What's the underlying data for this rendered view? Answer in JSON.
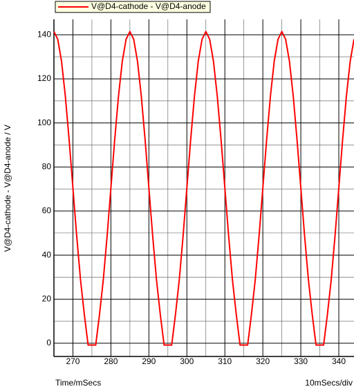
{
  "chart_data": {
    "type": "line",
    "legend_position": "top",
    "xlabel": "Time/mSecs",
    "xscale_label": "10mSecs/div",
    "ylabel": "V@D4-cathode - V@D4-anode / V",
    "x": [
      265,
      266,
      267,
      268,
      269,
      270,
      271,
      272,
      273,
      274,
      275,
      276,
      277,
      278,
      279,
      280,
      281,
      282,
      283,
      284,
      285,
      286,
      287,
      288,
      289,
      290,
      291,
      292,
      293,
      294,
      295,
      296,
      297,
      298,
      299,
      300,
      301,
      302,
      303,
      304,
      305,
      306,
      307,
      308,
      309,
      310,
      311,
      312,
      313,
      314,
      315,
      316,
      317,
      318,
      319,
      320,
      321,
      322,
      323,
      324,
      325,
      326,
      327,
      328,
      329,
      330,
      331,
      332,
      333,
      334,
      335,
      336,
      337,
      338,
      339,
      340,
      341,
      342,
      343,
      344
    ],
    "series": [
      {
        "name": "V@D4-cathode - V@D4-anode",
        "color": "#ff0000",
        "values": [
          141.5,
          138.0,
          128.0,
          112.2,
          92.4,
          70.5,
          48.6,
          28.8,
          13.1,
          -0.8,
          -0.8,
          -0.8,
          13.1,
          28.8,
          48.6,
          70.5,
          92.4,
          112.2,
          128.0,
          138.0,
          141.5,
          138.0,
          128.0,
          112.2,
          92.4,
          70.5,
          48.6,
          28.8,
          13.1,
          -0.8,
          -0.8,
          -0.8,
          13.1,
          28.8,
          48.6,
          70.5,
          92.4,
          112.2,
          128.0,
          138.0,
          141.5,
          138.0,
          128.0,
          112.2,
          92.4,
          70.5,
          48.6,
          28.8,
          13.1,
          -0.8,
          -0.8,
          -0.8,
          13.1,
          28.8,
          48.6,
          70.5,
          92.4,
          112.2,
          128.0,
          138.0,
          141.5,
          138.0,
          128.0,
          112.2,
          92.4,
          70.5,
          48.6,
          28.8,
          13.1,
          -0.8,
          -0.8,
          -0.8,
          13.1,
          28.8,
          48.6,
          70.5,
          92.4,
          112.2,
          128.0,
          138.0
        ]
      }
    ],
    "xlim": [
      265,
      344
    ],
    "ylim": [
      -6,
      147
    ],
    "xticks": [
      270,
      280,
      290,
      300,
      310,
      320,
      330,
      340
    ],
    "yticks": [
      0,
      20,
      40,
      60,
      80,
      100,
      120,
      140
    ],
    "x_minor_ticks": [
      275,
      285,
      295,
      305,
      315,
      325,
      335
    ],
    "y_minor_ticks": [
      10,
      30,
      50,
      70,
      90,
      110,
      130
    ],
    "grid": true
  }
}
